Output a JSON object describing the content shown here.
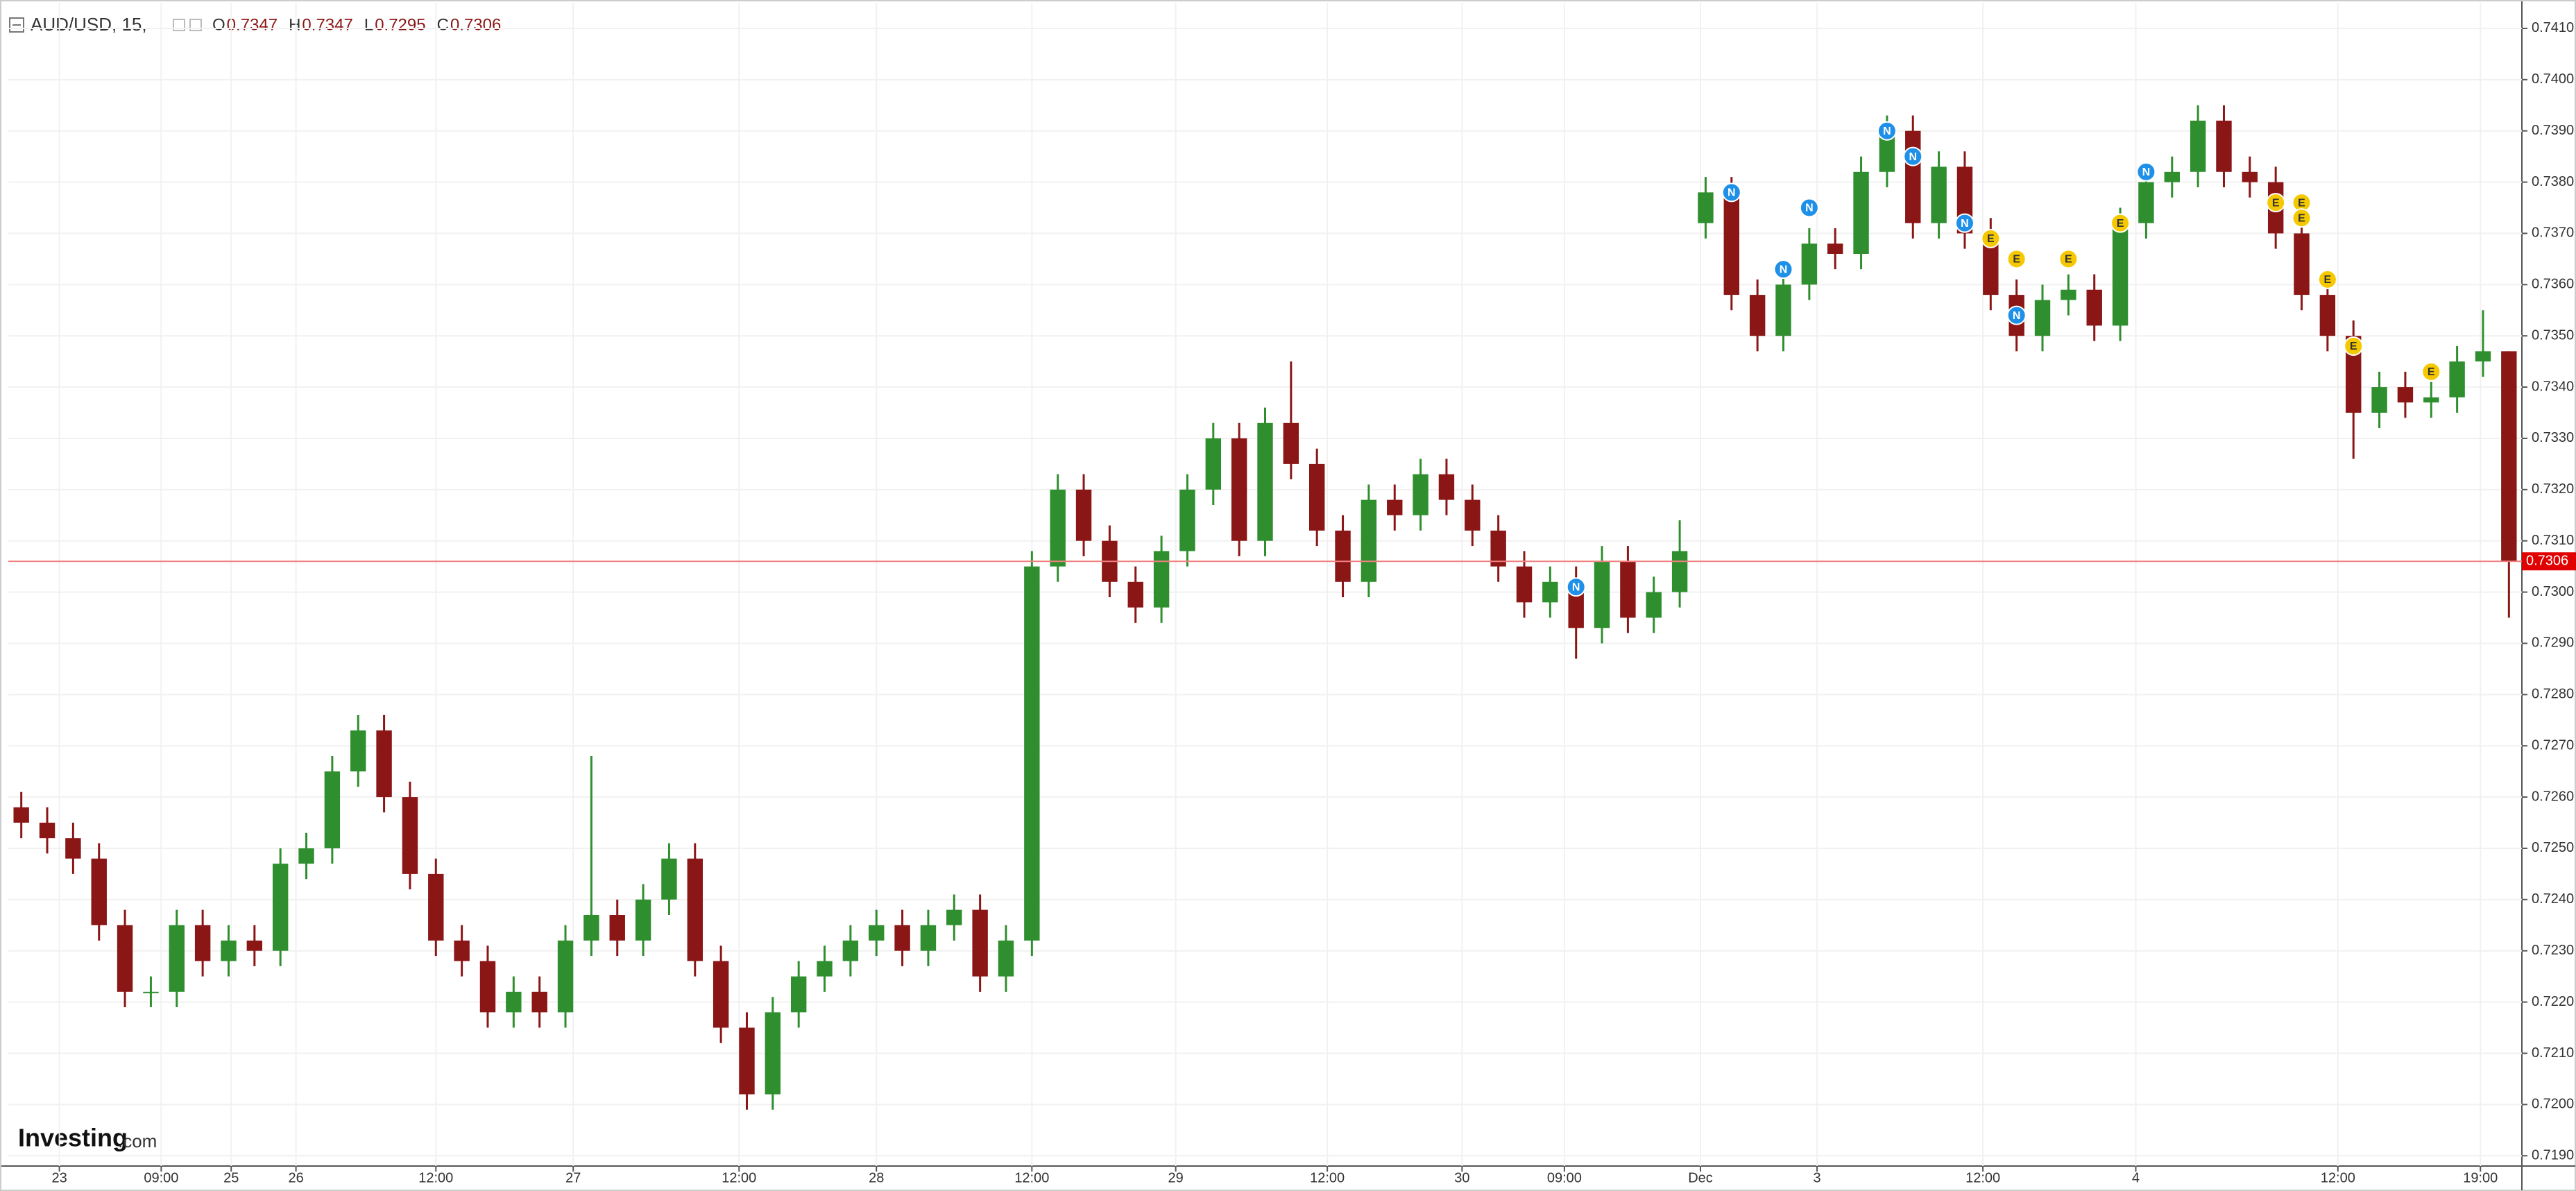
{
  "chart_data": {
    "type": "candlestick",
    "symbol": "AUD/USD, 15,",
    "ohlc_labels": [
      "O",
      "H",
      "L",
      "C"
    ],
    "brand": "Investing",
    "brand_suffix": ".com",
    "up_color": "#2f8f2f",
    "down_color": "#8b1616",
    "grid": true,
    "open": [
      0.7258,
      0.7255,
      0.7252,
      0.7248,
      0.7235,
      0.7222,
      0.7222,
      0.7235,
      0.7228,
      0.7232,
      0.723,
      0.7247,
      0.725,
      0.7265,
      0.7273,
      0.726,
      0.7245,
      0.7232,
      0.7228,
      0.7218,
      0.7222,
      0.7218,
      0.7232,
      0.7237,
      0.7232,
      0.724,
      0.7248,
      0.7228,
      0.7215,
      0.7202,
      0.7218,
      0.7225,
      0.7228,
      0.7232,
      0.7235,
      0.723,
      0.7235,
      0.7238,
      0.7225,
      0.7232,
      0.7305,
      0.732,
      0.731,
      0.7302,
      0.7297,
      0.7308,
      0.732,
      0.733,
      0.731,
      0.7333,
      0.7325,
      0.7312,
      0.7302,
      0.7318,
      0.7315,
      0.7323,
      0.7318,
      0.7312,
      0.7305,
      0.7298,
      0.7302,
      0.7293,
      0.7306,
      0.7295,
      0.73,
      0.7372,
      0.7378,
      0.7358,
      0.735,
      0.736,
      0.7368,
      0.7366,
      0.7382,
      0.739,
      0.7372,
      0.7383,
      0.737,
      0.7358,
      0.735,
      0.7357,
      0.7359,
      0.7352,
      0.7372,
      0.738,
      0.7382,
      0.7392,
      0.7382,
      0.738,
      0.737,
      0.7358,
      0.735,
      0.7335,
      0.734,
      0.7337,
      0.7338,
      0.7345,
      0.7347
    ],
    "high": [
      0.7261,
      0.7258,
      0.7255,
      0.7251,
      0.7238,
      0.7225,
      0.7238,
      0.7238,
      0.7235,
      0.7235,
      0.725,
      0.7253,
      0.7268,
      0.7276,
      0.7276,
      0.7263,
      0.7248,
      0.7235,
      0.7231,
      0.7225,
      0.7225,
      0.7235,
      0.7268,
      0.724,
      0.7243,
      0.7251,
      0.7251,
      0.7231,
      0.7218,
      0.7221,
      0.7228,
      0.7231,
      0.7235,
      0.7238,
      0.7238,
      0.7238,
      0.7241,
      0.7241,
      0.7235,
      0.7308,
      0.7323,
      0.7323,
      0.7313,
      0.7305,
      0.7311,
      0.7323,
      0.7333,
      0.7333,
      0.7336,
      0.7345,
      0.7328,
      0.7315,
      0.7321,
      0.7321,
      0.7326,
      0.7326,
      0.7321,
      0.7315,
      0.7308,
      0.7305,
      0.7305,
      0.7309,
      0.7309,
      0.7303,
      0.7314,
      0.7381,
      0.7381,
      0.7361,
      0.7363,
      0.7371,
      0.7371,
      0.7385,
      0.7393,
      0.7393,
      0.7386,
      0.7386,
      0.7373,
      0.7361,
      0.736,
      0.7362,
      0.7362,
      0.7375,
      0.7383,
      0.7385,
      0.7395,
      0.7395,
      0.7385,
      0.7383,
      0.7373,
      0.7361,
      0.7353,
      0.7343,
      0.7343,
      0.7341,
      0.7348,
      0.7355,
      0.7347
    ],
    "low": [
      0.7252,
      0.7249,
      0.7245,
      0.7232,
      0.7219,
      0.7219,
      0.7219,
      0.7225,
      0.7225,
      0.7227,
      0.7227,
      0.7244,
      0.7247,
      0.7262,
      0.7257,
      0.7242,
      0.7229,
      0.7225,
      0.7215,
      0.7215,
      0.7215,
      0.7215,
      0.7229,
      0.7229,
      0.7229,
      0.7237,
      0.7225,
      0.7212,
      0.7199,
      0.7199,
      0.7215,
      0.7222,
      0.7225,
      0.7229,
      0.7227,
      0.7227,
      0.7232,
      0.7222,
      0.7222,
      0.7229,
      0.7302,
      0.7307,
      0.7299,
      0.7294,
      0.7294,
      0.7305,
      0.7317,
      0.7307,
      0.7307,
      0.7322,
      0.7309,
      0.7299,
      0.7299,
      0.7312,
      0.7312,
      0.7315,
      0.7309,
      0.7302,
      0.7295,
      0.7295,
      0.7287,
      0.729,
      0.7292,
      0.7292,
      0.7297,
      0.7369,
      0.7355,
      0.7347,
      0.7347,
      0.7357,
      0.7363,
      0.7363,
      0.7379,
      0.7369,
      0.7369,
      0.7367,
      0.7355,
      0.7347,
      0.7347,
      0.7354,
      0.7349,
      0.7349,
      0.7369,
      0.7377,
      0.7379,
      0.7379,
      0.7377,
      0.7367,
      0.7355,
      0.7347,
      0.7326,
      0.7332,
      0.7334,
      0.7334,
      0.7335,
      0.7342,
      0.7295
    ],
    "close": [
      0.7255,
      0.7252,
      0.7248,
      0.7235,
      0.7222,
      0.7222,
      0.7235,
      0.7228,
      0.7232,
      0.723,
      0.7247,
      0.725,
      0.7265,
      0.7273,
      0.726,
      0.7245,
      0.7232,
      0.7228,
      0.7218,
      0.7222,
      0.7218,
      0.7232,
      0.7237,
      0.7232,
      0.724,
      0.7248,
      0.7228,
      0.7215,
      0.7202,
      0.7218,
      0.7225,
      0.7228,
      0.7232,
      0.7235,
      0.723,
      0.7235,
      0.7238,
      0.7225,
      0.7232,
      0.7305,
      0.732,
      0.731,
      0.7302,
      0.7297,
      0.7308,
      0.732,
      0.733,
      0.731,
      0.7333,
      0.7325,
      0.7312,
      0.7302,
      0.7318,
      0.7315,
      0.7323,
      0.7318,
      0.7312,
      0.7305,
      0.7298,
      0.7302,
      0.7293,
      0.7306,
      0.7295,
      0.73,
      0.7308,
      0.7378,
      0.7358,
      0.735,
      0.736,
      0.7368,
      0.7366,
      0.7382,
      0.739,
      0.7372,
      0.7383,
      0.737,
      0.7358,
      0.735,
      0.7357,
      0.7359,
      0.7352,
      0.7372,
      0.738,
      0.7382,
      0.7392,
      0.7382,
      0.738,
      0.737,
      0.7358,
      0.735,
      0.7335,
      0.734,
      0.7337,
      0.7338,
      0.7345,
      0.7347,
      0.7306
    ],
    "xlim": [
      -0.5,
      96.5
    ],
    "xticks": [
      {
        "value": 1.47,
        "label": "23"
      },
      {
        "value": 5.4,
        "label": "09:00"
      },
      {
        "value": 8.1,
        "label": "25"
      },
      {
        "value": 10.6,
        "label": "26"
      },
      {
        "value": 16,
        "label": "12:00"
      },
      {
        "value": 21.3,
        "label": "27"
      },
      {
        "value": 27.7,
        "label": "12:00"
      },
      {
        "value": 33,
        "label": "28"
      },
      {
        "value": 39,
        "label": "12:00"
      },
      {
        "value": 44.55,
        "label": "29"
      },
      {
        "value": 50.4,
        "label": "12:00"
      },
      {
        "value": 55.6,
        "label": "30"
      },
      {
        "value": 59.55,
        "label": "09:00"
      },
      {
        "value": 64.8,
        "label": "Dec"
      },
      {
        "value": 69.3,
        "label": "3"
      },
      {
        "value": 75.7,
        "label": "12:00"
      },
      {
        "value": 81.6,
        "label": "4"
      },
      {
        "value": 89.4,
        "label": "12:00"
      },
      {
        "value": 94.9,
        "label": "19:00"
      }
    ],
    "ylim": [
      0.7188,
      0.7415
    ],
    "yticks": [
      {
        "value": 0.719,
        "label": "0.7190"
      },
      {
        "value": 0.72,
        "label": "0.7200"
      },
      {
        "value": 0.721,
        "label": "0.7210"
      },
      {
        "value": 0.722,
        "label": "0.7220"
      },
      {
        "value": 0.723,
        "label": "0.7230"
      },
      {
        "value": 0.724,
        "label": "0.7240"
      },
      {
        "value": 0.725,
        "label": "0.7250"
      },
      {
        "value": 0.726,
        "label": "0.7260"
      },
      {
        "value": 0.727,
        "label": "0.7270"
      },
      {
        "value": 0.728,
        "label": "0.7280"
      },
      {
        "value": 0.729,
        "label": "0.7290"
      },
      {
        "value": 0.73,
        "label": "0.7300"
      },
      {
        "value": 0.731,
        "label": "0.7310"
      },
      {
        "value": 0.732,
        "label": "0.7320"
      },
      {
        "value": 0.733,
        "label": "0.7330"
      },
      {
        "value": 0.734,
        "label": "0.7340"
      },
      {
        "value": 0.735,
        "label": "0.7350"
      },
      {
        "value": 0.736,
        "label": "0.7360"
      },
      {
        "value": 0.737,
        "label": "0.7370"
      },
      {
        "value": 0.738,
        "label": "0.7380"
      },
      {
        "value": 0.739,
        "label": "0.7390"
      },
      {
        "value": 0.74,
        "label": "0.7400"
      },
      {
        "value": 0.741,
        "label": "0.7410"
      }
    ],
    "events": [
      {
        "label": "N",
        "x": 60,
        "y": 0.7301
      },
      {
        "label": "N",
        "x": 66,
        "y": 0.7378
      },
      {
        "label": "N",
        "x": 68,
        "y": 0.7363
      },
      {
        "label": "N",
        "x": 69,
        "y": 0.7375
      },
      {
        "label": "N",
        "x": 72,
        "y": 0.739
      },
      {
        "label": "N",
        "x": 73,
        "y": 0.7385
      },
      {
        "label": "N",
        "x": 75,
        "y": 0.7372
      },
      {
        "label": "N",
        "x": 77,
        "y": 0.7354
      },
      {
        "label": "N",
        "x": 82,
        "y": 0.7382
      },
      {
        "label": "E",
        "x": 76,
        "y": 0.7369
      },
      {
        "label": "E",
        "x": 77,
        "y": 0.7365
      },
      {
        "label": "E",
        "x": 79,
        "y": 0.7365
      },
      {
        "label": "E",
        "x": 81,
        "y": 0.7372
      },
      {
        "label": "E",
        "x": 87,
        "y": 0.7376
      },
      {
        "label": "E",
        "x": 88,
        "y": 0.7376
      },
      {
        "label": "E",
        "x": 88,
        "y": 0.7373
      },
      {
        "label": "E",
        "x": 89,
        "y": 0.7361
      },
      {
        "label": "E",
        "x": 90,
        "y": 0.7348
      },
      {
        "label": "E",
        "x": 93,
        "y": 0.7343
      }
    ]
  }
}
